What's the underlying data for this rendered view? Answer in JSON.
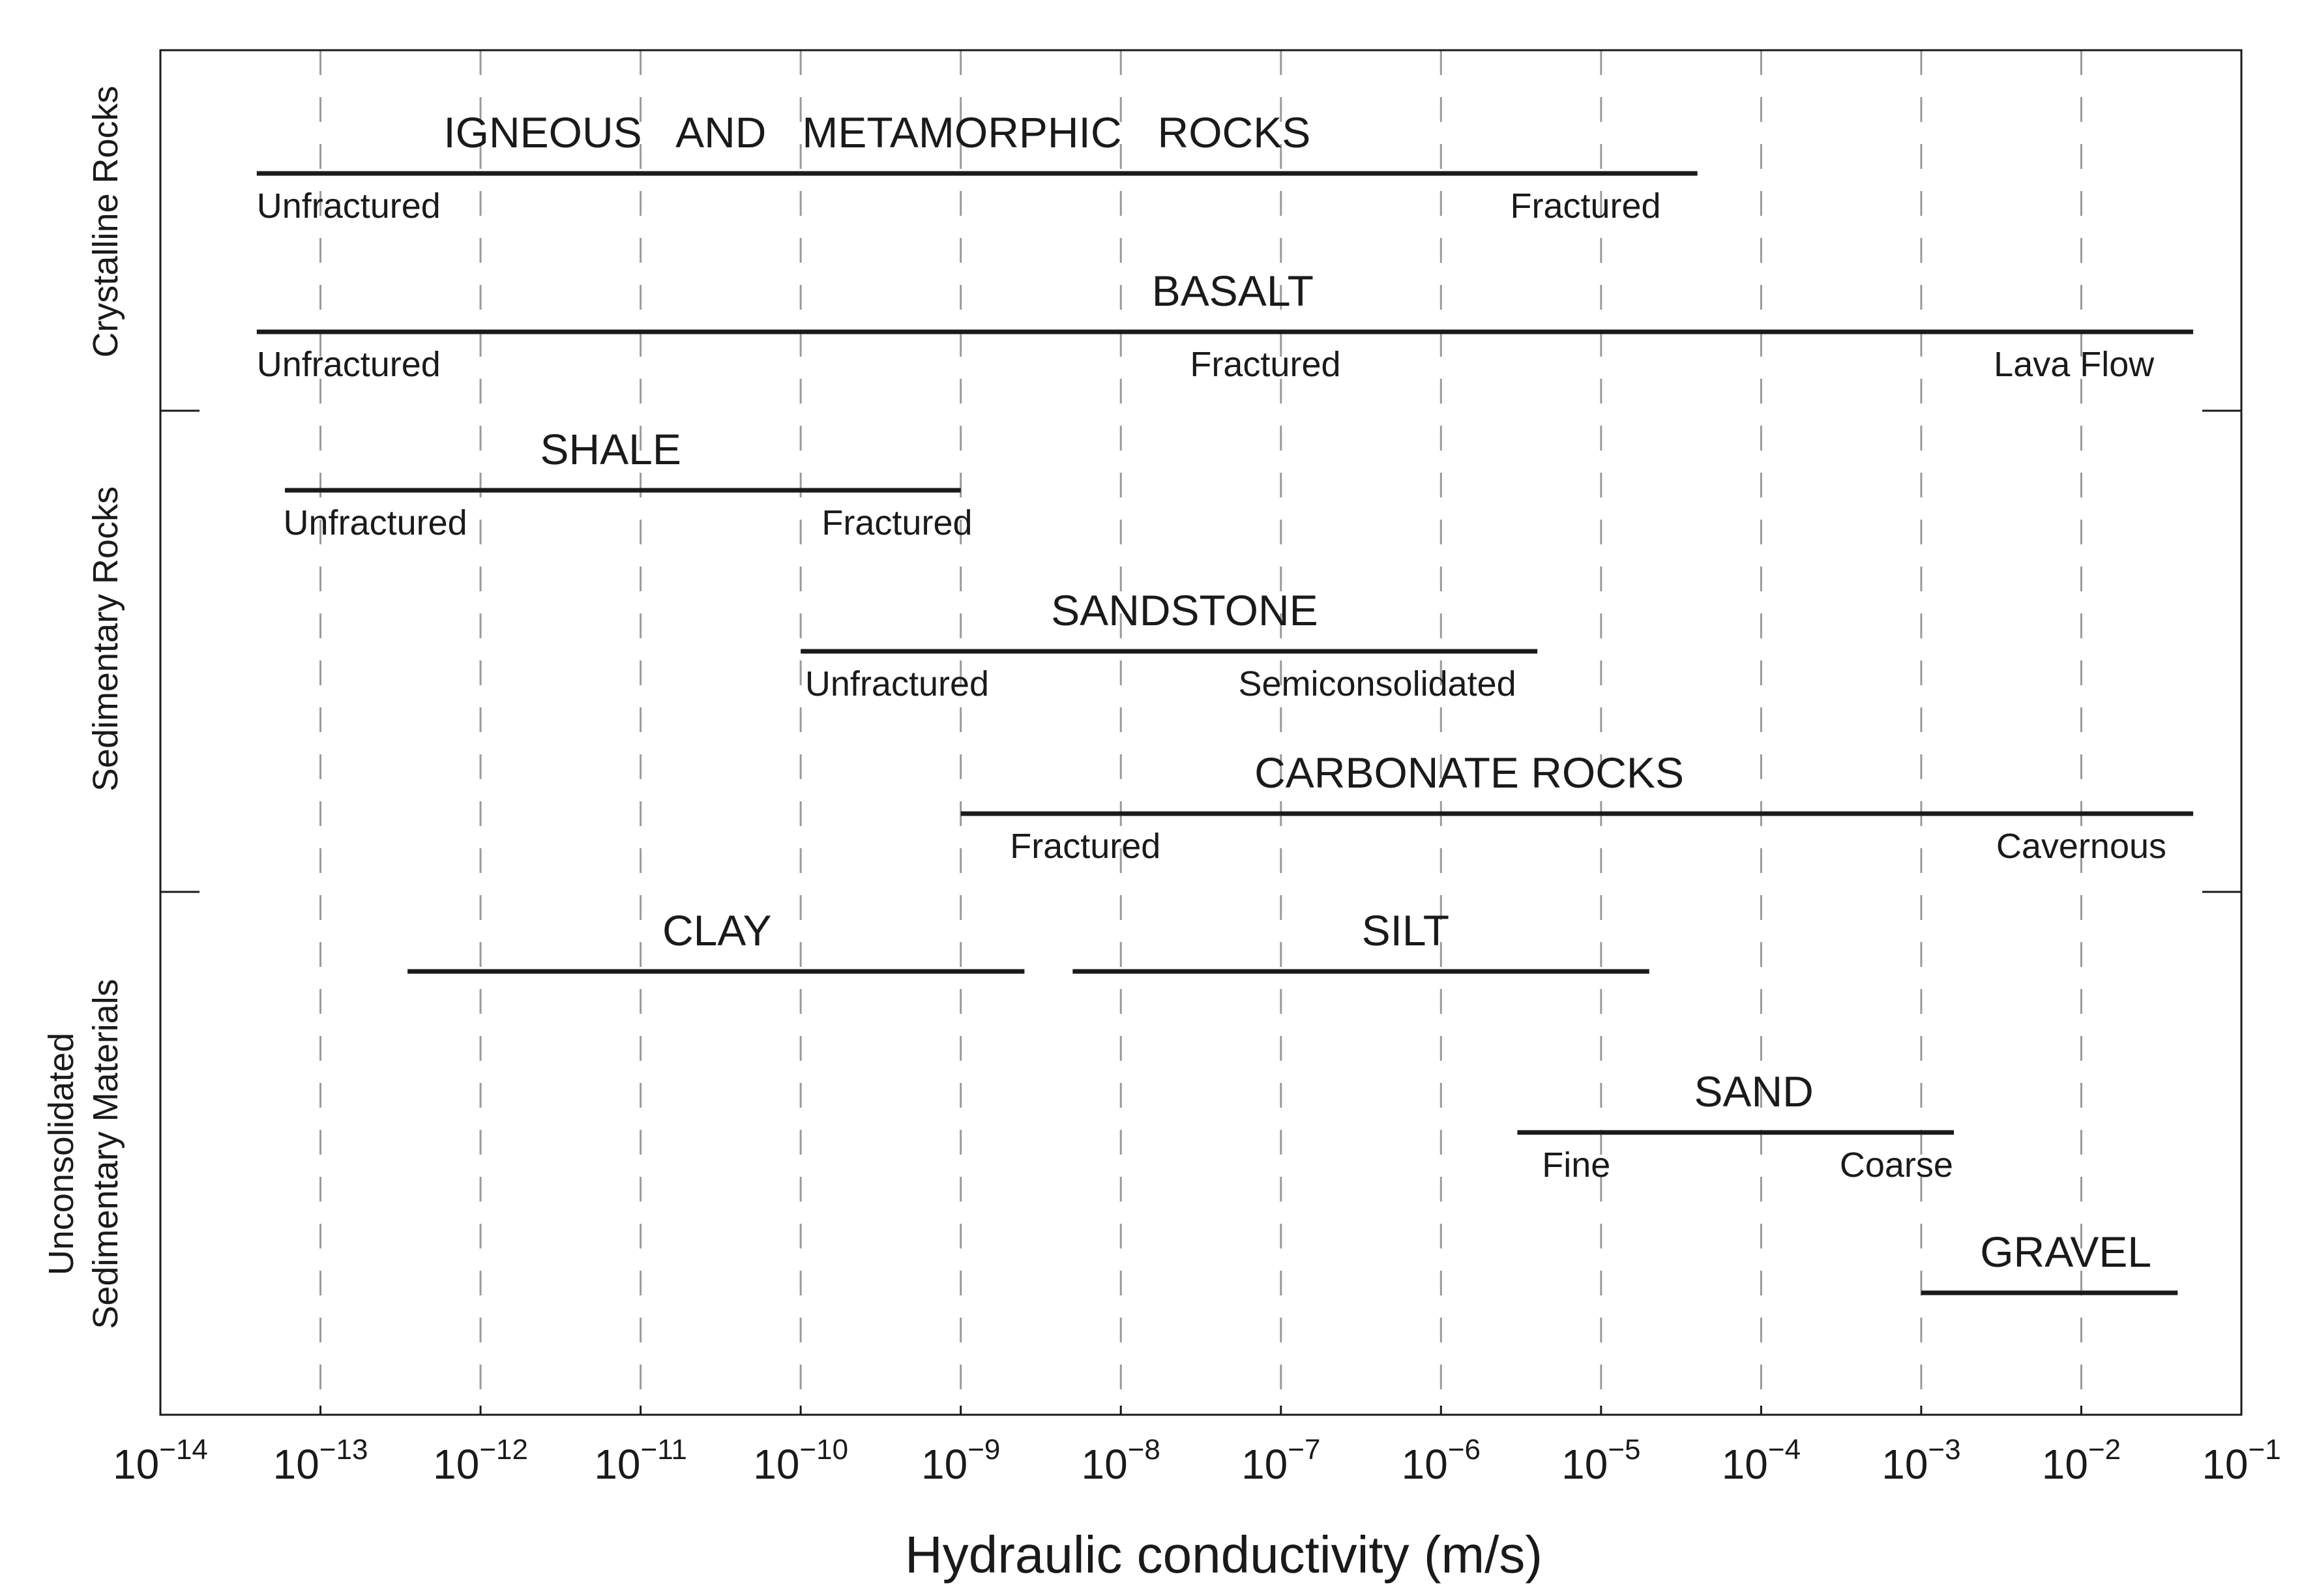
{
  "chart_data": {
    "type": "range",
    "title": "",
    "xlabel": "Hydraulic conductivity (m/s)",
    "ylabel": "",
    "x_scale": "log10",
    "xlim": [
      1e-14,
      0.1
    ],
    "x_tick_labels": [
      {
        "base": "10",
        "exp": "−14"
      },
      {
        "base": "10",
        "exp": "−13"
      },
      {
        "base": "10",
        "exp": "−12"
      },
      {
        "base": "10",
        "exp": "−11"
      },
      {
        "base": "10",
        "exp": "−10"
      },
      {
        "base": "10",
        "exp": "−9"
      },
      {
        "base": "10",
        "exp": "−8"
      },
      {
        "base": "10",
        "exp": "−7"
      },
      {
        "base": "10",
        "exp": "−6"
      },
      {
        "base": "10",
        "exp": "−5"
      },
      {
        "base": "10",
        "exp": "−4"
      },
      {
        "base": "10",
        "exp": "−3"
      },
      {
        "base": "10",
        "exp": "−2"
      },
      {
        "base": "10",
        "exp": "−1"
      }
    ],
    "grid": "vertical dashed",
    "groups": [
      {
        "label": "Crystalline Rocks",
        "lines": [
          "Crystalline Rocks"
        ]
      },
      {
        "label": "Sedimentary Rocks",
        "lines": [
          "Sedimentary Rocks"
        ]
      },
      {
        "label": "Unconsolidated Sedimentary Materials",
        "lines": [
          "Unconsolidated",
          "Sedimentary Materials"
        ]
      }
    ],
    "ranges": [
      {
        "name": "IGNEOUS   AND   METAMORPHIC   ROCKS",
        "group": 0,
        "min": 4e-14,
        "max": 4e-05,
        "label_at": 3e-10,
        "annotations": [
          {
            "text": "Unfractured",
            "at": 1.5e-13
          },
          {
            "text": "Fractured",
            "at": 8e-06
          }
        ]
      },
      {
        "name": "BASALT",
        "group": 0,
        "min": 4e-14,
        "max": 0.05,
        "label_at": 5e-08,
        "annotations": [
          {
            "text": "Unfractured",
            "at": 1.5e-13
          },
          {
            "text": "Fractured",
            "at": 8e-08
          },
          {
            "text": "Lava Flow",
            "at": 0.009
          }
        ]
      },
      {
        "name": "SHALE",
        "group": 1,
        "min": 6e-14,
        "max": 1e-09,
        "label_at": 6.5e-12,
        "annotations": [
          {
            "text": "Unfractured",
            "at": 2.2e-13
          },
          {
            "text": "Fractured",
            "at": 4e-10
          }
        ]
      },
      {
        "name": "SANDSTONE",
        "group": 1,
        "min": 1e-10,
        "max": 4e-06,
        "label_at": 2.5e-08,
        "annotations": [
          {
            "text": "Unfractured",
            "at": 4e-10
          },
          {
            "text": "Semiconsolidated",
            "at": 4e-07
          }
        ]
      },
      {
        "name": "CARBONATE ROCKS",
        "group": 1,
        "min": 1e-09,
        "max": 0.05,
        "label_at": 1.5e-06,
        "annotations": [
          {
            "text": "Fractured",
            "at": 6e-09
          },
          {
            "text": "Cavernous",
            "at": 0.01
          }
        ]
      },
      {
        "name": "CLAY",
        "group": 2,
        "min": 3.5e-13,
        "max": 2.5e-09,
        "label_at": 3e-11,
        "annotations": []
      },
      {
        "name": "SILT",
        "group": 2,
        "min": 5e-09,
        "max": 2e-05,
        "label_at": 6e-07,
        "annotations": []
      },
      {
        "name": "SAND",
        "group": 2,
        "min": 3e-06,
        "max": 0.0016,
        "label_at": 9e-05,
        "annotations": [
          {
            "text": "Fine",
            "at": 7e-06
          },
          {
            "text": "Coarse",
            "at": 0.0007
          }
        ]
      },
      {
        "name": "GRAVEL",
        "group": 2,
        "min": 0.001,
        "max": 0.04,
        "label_at": 0.008,
        "annotations": []
      }
    ]
  }
}
